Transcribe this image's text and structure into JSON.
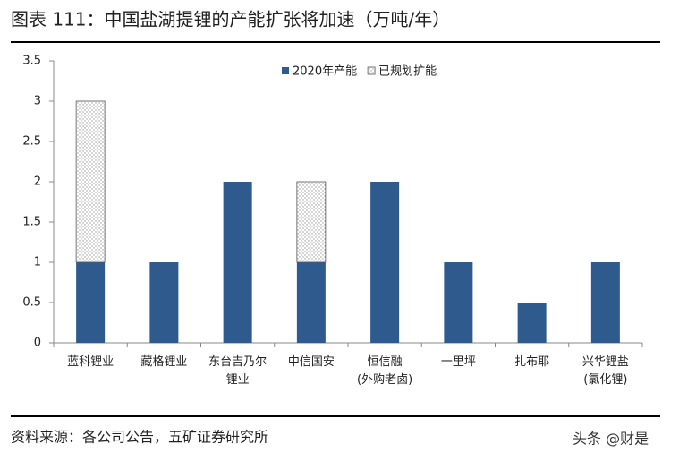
{
  "chart_data": {
    "type": "stacked_bar",
    "title": "图表 111：中国盐湖提锂的产能扩张将加速（万吨/年）",
    "categories": [
      "蓝科锂业",
      "藏格锂业",
      "东台吉乃尔\n锂业",
      "中信国安",
      "恒信融\n(外购老卤)",
      "一里坪",
      "扎布耶",
      "兴华锂盐\n(氯化锂)"
    ],
    "series": [
      {
        "name": "2020年产能",
        "color": "#2e5a8e",
        "pattern": "solid",
        "values": [
          1,
          1,
          2,
          1,
          2,
          1,
          0.5,
          1
        ]
      },
      {
        "name": "已规划扩能",
        "color": "#9a9a9a",
        "pattern": "dots",
        "values": [
          2,
          0,
          0,
          1,
          0,
          0,
          0,
          0
        ]
      }
    ],
    "ylim": [
      0,
      3.5
    ],
    "yticks": [
      0,
      0.5,
      1,
      1.5,
      2,
      2.5,
      3,
      3.5
    ],
    "grid": false,
    "legend": "top",
    "source": "资料来源：各公司公告，五矿证券研究所",
    "watermark": "头条 @财是"
  }
}
